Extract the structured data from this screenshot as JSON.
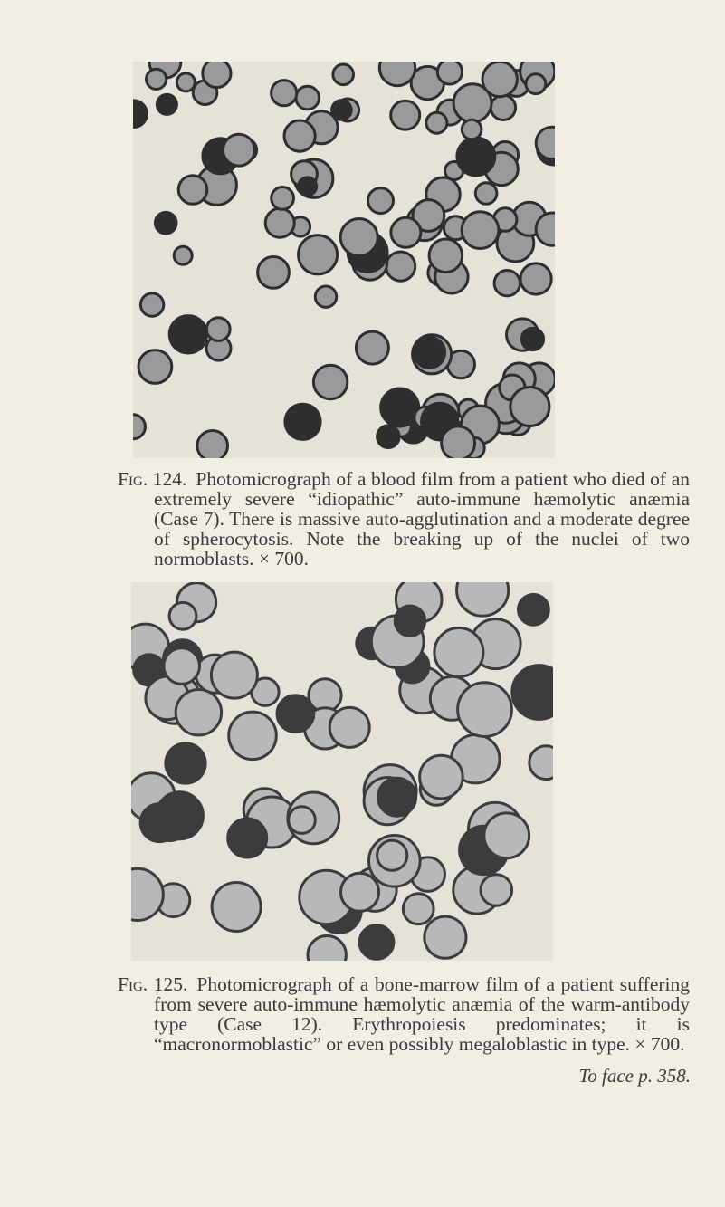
{
  "figures": [
    {
      "label": "Fig. 124.",
      "caption": "Photomicrograph of a blood film from a patient who died of an extremely severe “idiopathic” auto-immune hæmolytic anæmia (Case 7). There is massive auto-agglutination and a moderate degree of spherocytosis. Note the breaking up of the nuclei of two normoblasts. × 700."
    },
    {
      "label": "Fig. 125.",
      "caption": "Photomicrograph of a bone-marrow film of a patient suffering from severe auto-immune hæmolytic anæmia of the warm-antibody type (Case 12). Erythropoiesis predominates; it is “macronormoblastic” or even possibly megaloblastic in type. × 700."
    }
  ],
  "footer": "To face p. 358."
}
